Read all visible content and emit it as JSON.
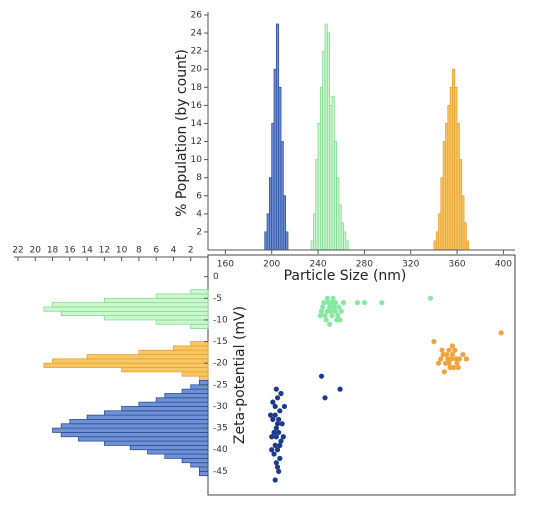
{
  "chart_data": [
    {
      "type": "histogram",
      "orientation": "vertical",
      "xlabel": "Particle Size (nm)",
      "ylabel": "% Population (by count)",
      "xlim": [
        145,
        410
      ],
      "xticks": [
        160,
        200,
        240,
        280,
        320,
        360,
        400
      ],
      "ylim": [
        0,
        26
      ],
      "yticks": [
        2,
        4,
        6,
        8,
        10,
        12,
        14,
        16,
        18,
        20,
        22,
        24,
        26
      ],
      "series": [
        {
          "fill": "#7091d4",
          "color": "#2b4f9e",
          "bins": [
            194,
            196,
            198,
            200,
            202,
            204,
            206,
            208,
            210,
            212,
            214
          ],
          "values": [
            2,
            4,
            8,
            14,
            20,
            25,
            18,
            12,
            6,
            2
          ]
        },
        {
          "fill": "#cdf7cf",
          "color": "#7fdc90",
          "bins": [
            234,
            236,
            238,
            240,
            242,
            244,
            246,
            248,
            250,
            252,
            254,
            256,
            258,
            260,
            262,
            264,
            266
          ],
          "values": [
            1,
            4,
            10,
            14,
            18,
            22,
            25,
            24,
            16,
            17,
            12,
            8,
            5,
            3,
            2,
            1
          ]
        },
        {
          "fill": "#f7c766",
          "color": "#e8a12e",
          "bins": [
            340,
            342,
            344,
            346,
            348,
            350,
            352,
            354,
            356,
            358,
            360,
            362,
            364,
            366,
            368,
            370
          ],
          "values": [
            1,
            2,
            4,
            8,
            12,
            14,
            16,
            18,
            20,
            18,
            14,
            10,
            6,
            3,
            1
          ]
        }
      ]
    },
    {
      "type": "histogram",
      "orientation": "horizontal",
      "xlim": [
        0,
        22
      ],
      "x_reversed": true,
      "xticks": [
        2,
        4,
        6,
        8,
        10,
        12,
        14,
        16,
        18,
        20,
        22
      ],
      "ylim": [
        -50,
        2
      ],
      "series": [
        {
          "fill": "#cdf7cf",
          "color": "#7fdc90",
          "bins": [
            -12,
            -11,
            -10,
            -9,
            -8,
            -7,
            -6,
            -5,
            -4,
            -3
          ],
          "values": [
            2,
            6,
            12,
            17,
            19,
            18,
            12,
            6,
            2
          ]
        },
        {
          "fill": "#f7c766",
          "color": "#e8a12e",
          "bins": [
            -24,
            -23,
            -22,
            -21,
            -20,
            -19,
            -18,
            -17,
            -16,
            -15
          ],
          "values": [
            1,
            3,
            10,
            19,
            18,
            14,
            8,
            4,
            2
          ]
        },
        {
          "fill": "#7091d4",
          "color": "#2b4f9e",
          "bins": [
            -46,
            -45,
            -44,
            -43,
            -42,
            -41,
            -40,
            -39,
            -38,
            -37,
            -36,
            -35,
            -34,
            -33,
            -32,
            -31,
            -30,
            -29,
            -28,
            -27,
            -26,
            -25,
            -24
          ],
          "values": [
            1,
            1,
            2,
            3,
            5,
            7,
            9,
            12,
            15,
            17,
            18,
            17,
            16,
            14,
            12,
            10,
            8,
            6,
            5,
            3,
            2,
            1
          ]
        }
      ]
    },
    {
      "type": "scatter",
      "ylabel": "Zeta-potential (mV)",
      "xlim": [
        145,
        410
      ],
      "ylim": [
        -50,
        2
      ],
      "yticks": [
        0,
        -5,
        -10,
        -15,
        -20,
        -25,
        -30,
        -35,
        -40,
        -45
      ],
      "series": [
        {
          "color": "#1c3a8c",
          "x": [
            205,
            203,
            207,
            201,
            209,
            204,
            206,
            200,
            208,
            203,
            205,
            202,
            207,
            204,
            206,
            203,
            199,
            211,
            204,
            206,
            202,
            210,
            205,
            203,
            207,
            204,
            201,
            208,
            205,
            200,
            243,
            259,
            246
          ],
          "y": [
            -28,
            -30,
            -31,
            -33,
            -34,
            -35,
            -36,
            -37,
            -38,
            -39,
            -40,
            -41,
            -42,
            -43,
            -45,
            -47,
            -32,
            -30,
            -26,
            -33,
            -36,
            -37,
            -34,
            -32,
            -39,
            -37,
            -29,
            -27,
            -44,
            -40,
            -23,
            -26,
            -28
          ]
        },
        {
          "color": "#85eaa0",
          "x": [
            245,
            250,
            255,
            248,
            252,
            258,
            243,
            247,
            253,
            260,
            249,
            256,
            244,
            251,
            262,
            246,
            254,
            257,
            250,
            248,
            259,
            242,
            252,
            255,
            274,
            280,
            295,
            337
          ],
          "y": [
            -6,
            -7,
            -6,
            -8,
            -9,
            -7,
            -8,
            -10,
            -5,
            -8,
            -6,
            -10,
            -7,
            -8,
            -6,
            -9,
            -7,
            -9,
            -11,
            -5,
            -10,
            -9,
            -6,
            -8,
            -6,
            -6,
            -6,
            -5
          ]
        },
        {
          "color": "#f2a23e",
          "x": [
            348,
            352,
            356,
            360,
            354,
            350,
            358,
            362,
            346,
            353,
            357,
            365,
            349,
            355,
            361,
            351,
            359,
            344,
            368,
            356,
            353,
            347,
            340,
            398
          ],
          "y": [
            -18,
            -19,
            -18,
            -20,
            -21,
            -20,
            -17,
            -19,
            -19,
            -17,
            -21,
            -18,
            -22,
            -19,
            -21,
            -18,
            -19,
            -20,
            -19,
            -16,
            -20,
            -17,
            -15,
            -13
          ]
        }
      ]
    }
  ]
}
